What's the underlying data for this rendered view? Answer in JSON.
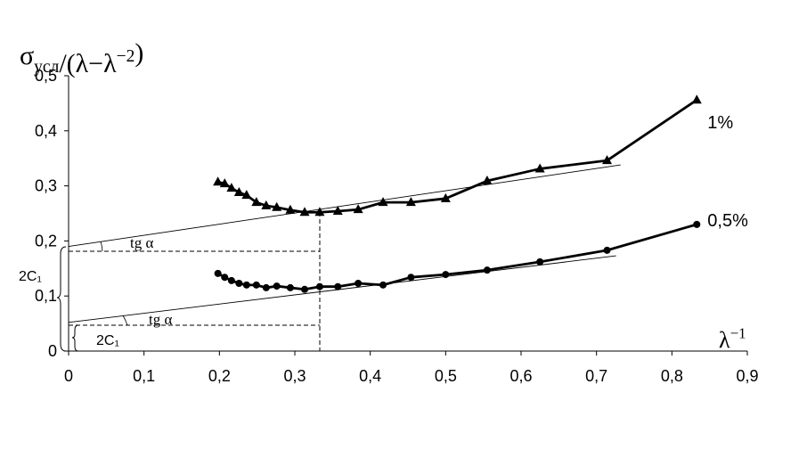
{
  "chart_data": {
    "type": "line",
    "ylabel_parts": [
      {
        "text": "σ",
        "shift": "base"
      },
      {
        "text": "усл",
        "shift": "sub"
      },
      {
        "text": "/(λ−λ",
        "shift": "base"
      },
      {
        "text": "−2",
        "shift": "sup"
      },
      {
        "text": ")",
        "shift": "base"
      }
    ],
    "xlabel_parts": [
      {
        "text": "λ",
        "shift": "base"
      },
      {
        "text": "−1",
        "shift": "sup"
      }
    ],
    "xlim": [
      0,
      0.9
    ],
    "ylim": [
      0,
      0.5
    ],
    "xticks": [
      0,
      {
        "value": 0.1,
        "label": "0,1"
      },
      {
        "value": 0.2,
        "label": "0,2"
      },
      {
        "value": 0.3,
        "label": "0,3"
      },
      {
        "value": 0.4,
        "label": "0,4"
      },
      {
        "value": 0.5,
        "label": "0,5"
      },
      {
        "value": 0.6,
        "label": "0,6"
      },
      {
        "value": 0.7,
        "label": "0,7"
      },
      {
        "value": 0.8,
        "label": "0,8"
      },
      {
        "value": 0.9,
        "label": "0,9"
      }
    ],
    "yticks": [
      0,
      {
        "value": 0.1,
        "label": "0,1"
      },
      {
        "value": 0.2,
        "label": "0,2"
      },
      {
        "value": 0.3,
        "label": "0,3"
      },
      {
        "value": 0.4,
        "label": "0,4"
      },
      {
        "value": 0.5,
        "label": "0,5"
      }
    ],
    "series": [
      {
        "name": "1%",
        "color": "#000000",
        "marker": "triangle",
        "x": [
          0.198,
          0.207,
          0.216,
          0.226,
          0.236,
          0.249,
          0.262,
          0.276,
          0.294,
          0.313,
          0.333,
          0.357,
          0.384,
          0.417,
          0.454,
          0.5,
          0.555,
          0.625,
          0.714,
          0.833
        ],
        "values": [
          0.307,
          0.304,
          0.296,
          0.288,
          0.283,
          0.27,
          0.264,
          0.261,
          0.256,
          0.252,
          0.252,
          0.254,
          0.257,
          0.27,
          0.27,
          0.277,
          0.309,
          0.331,
          0.346,
          0.456
        ],
        "fit": {
          "x": [
            0,
            0.732
          ],
          "values": [
            0.19,
            0.338
          ]
        }
      },
      {
        "name": "0,5%",
        "color": "#000000",
        "marker": "circle",
        "x": [
          0.198,
          0.207,
          0.216,
          0.226,
          0.236,
          0.249,
          0.262,
          0.276,
          0.294,
          0.313,
          0.333,
          0.357,
          0.384,
          0.417,
          0.454,
          0.5,
          0.555,
          0.625,
          0.714,
          0.833
        ],
        "values": [
          0.141,
          0.134,
          0.128,
          0.123,
          0.12,
          0.12,
          0.115,
          0.118,
          0.115,
          0.112,
          0.117,
          0.117,
          0.123,
          0.12,
          0.134,
          0.139,
          0.147,
          0.162,
          0.183,
          0.23
        ],
        "fit": {
          "x": [
            0,
            0.726
          ],
          "values": [
            0.052,
            0.173
          ]
        }
      }
    ],
    "annotations": [
      "tg α",
      "tg α",
      "2C₁",
      "2C₁"
    ]
  }
}
